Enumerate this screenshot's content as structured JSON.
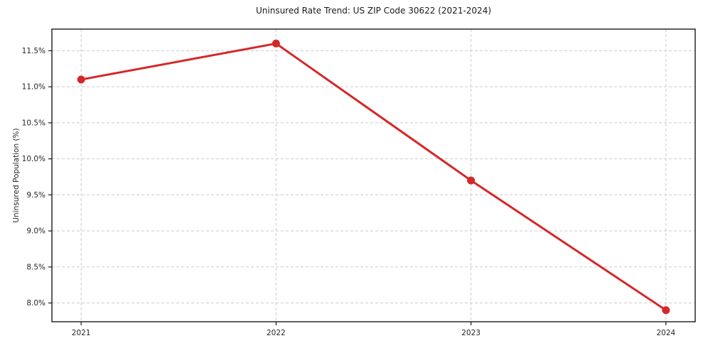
{
  "chart_data": {
    "type": "line",
    "title": "Uninsured Rate Trend: US ZIP Code 30622 (2021-2024)",
    "xlabel": "",
    "ylabel": "Uninsured Population (%)",
    "x": [
      2021,
      2022,
      2023,
      2024
    ],
    "values": [
      11.1,
      11.6,
      9.7,
      7.9
    ],
    "xtick_labels": [
      "2021",
      "2022",
      "2023",
      "2024"
    ],
    "ytick_values": [
      8.0,
      8.5,
      9.0,
      9.5,
      10.0,
      10.5,
      11.0,
      11.5
    ],
    "ytick_labels": [
      "8.0%",
      "8.5%",
      "9.0%",
      "9.5%",
      "10.0%",
      "10.5%",
      "11.0%",
      "11.5%"
    ],
    "xlim": [
      2020.85,
      2024.15
    ],
    "ylim": [
      7.74,
      11.8
    ],
    "grid": true,
    "legend_position": "none",
    "line_color": "#d62728",
    "marker": "circle",
    "grid_color": "#cccccc",
    "spine_color": "#1a1a1a",
    "text_color": "#262626",
    "background_color": "#ffffff"
  }
}
